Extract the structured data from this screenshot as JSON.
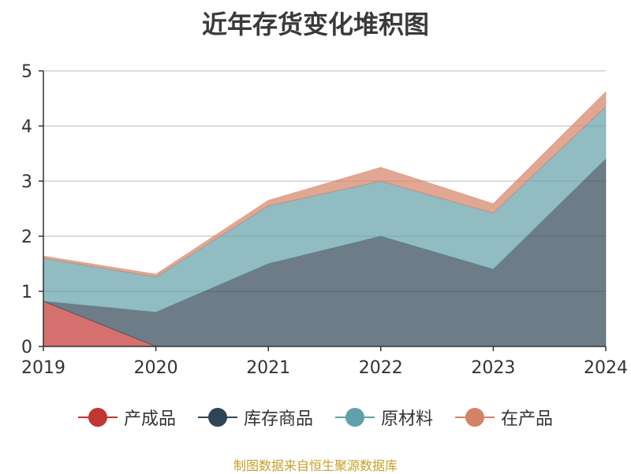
{
  "chart_data": {
    "type": "area",
    "stacked": true,
    "title": "近年存货变化堆积图",
    "categories": [
      "2019",
      "2020",
      "2021",
      "2022",
      "2023",
      "2024"
    ],
    "ylim": [
      0,
      5
    ],
    "yticks": [
      0,
      1,
      2,
      3,
      4,
      5
    ],
    "grid": true,
    "legend_position": "bottom",
    "series": [
      {
        "name": "产成品",
        "color": "#c23531",
        "values": [
          0.82,
          0.0,
          0.0,
          0.0,
          0.0,
          0.0
        ]
      },
      {
        "name": "库存商品",
        "color": "#2f4554",
        "values": [
          0.0,
          0.62,
          1.5,
          2.0,
          1.4,
          3.4
        ]
      },
      {
        "name": "原材料",
        "color": "#61a0a8",
        "values": [
          0.78,
          0.64,
          1.05,
          1.0,
          1.02,
          0.95
        ]
      },
      {
        "name": "在产品",
        "color": "#d48265",
        "values": [
          0.04,
          0.05,
          0.1,
          0.25,
          0.17,
          0.27
        ]
      }
    ]
  },
  "source_note": "制图数据来自恒生聚源数据库"
}
